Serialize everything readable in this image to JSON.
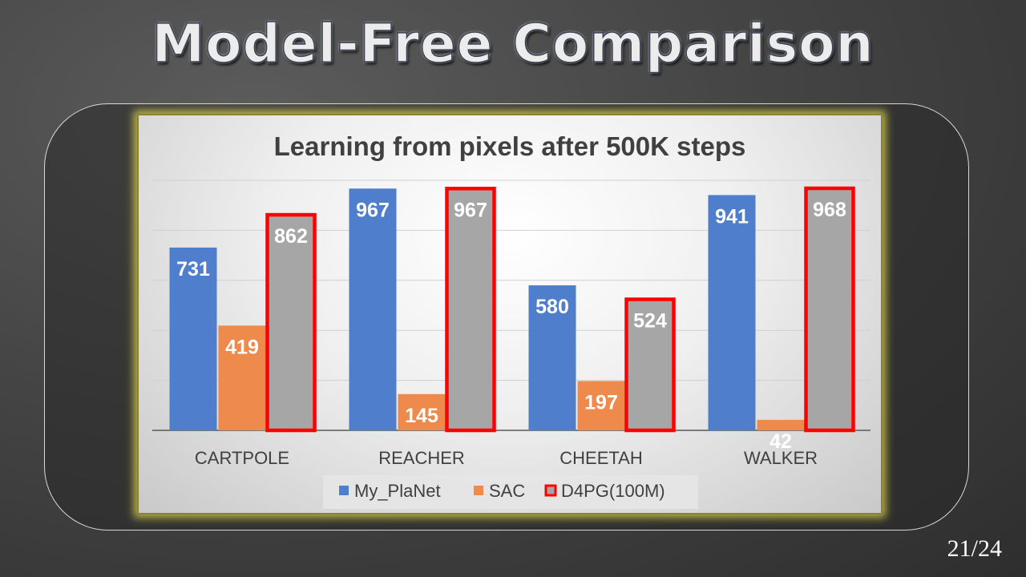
{
  "slide": {
    "title": "Model-Free Comparison",
    "page_number": "21/24"
  },
  "colors": {
    "my_planet": "#4F7FCC",
    "sac": "#EE8A4B",
    "d4pg": "#A6A6A6",
    "d4pg_outline": "#FF0000"
  },
  "chart_data": {
    "type": "bar",
    "title": "Learning from pixels after 500K steps",
    "categories": [
      "CARTPOLE",
      "REACHER",
      "CHEETAH",
      "WALKER"
    ],
    "series": [
      {
        "name": "My_PlaNet",
        "values": [
          731,
          967,
          580,
          941
        ]
      },
      {
        "name": "SAC",
        "values": [
          419,
          145,
          197,
          42
        ]
      },
      {
        "name": "D4PG(100M)",
        "values": [
          862,
          967,
          524,
          968
        ]
      }
    ],
    "ylim": [
      0,
      1000
    ],
    "grid": true,
    "legend": "bottom",
    "xlabel": "",
    "ylabel": ""
  }
}
